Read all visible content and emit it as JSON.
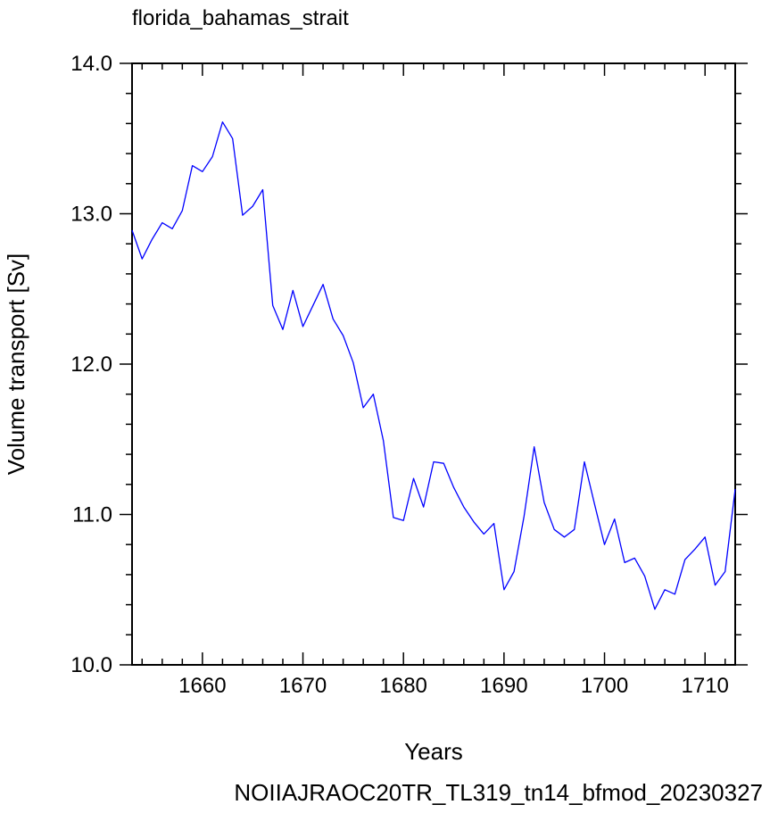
{
  "chart_data": {
    "type": "line",
    "title": "florida_bahamas_strait",
    "xlabel": "Years",
    "ylabel": "Volume transport [Sv]",
    "footer": "NOIIAJRAOC20TR_TL319_tn14_bfmod_20230327",
    "xlim": [
      1653,
      1713
    ],
    "ylim": [
      10.0,
      14.0
    ],
    "x_ticks": [
      1660,
      1670,
      1680,
      1690,
      1700,
      1710
    ],
    "x_tick_labels": [
      "1660",
      "1670",
      "1680",
      "1690",
      "1700",
      "1710"
    ],
    "y_ticks": [
      10.0,
      11.0,
      12.0,
      13.0,
      14.0
    ],
    "y_tick_labels": [
      "10.0",
      "11.0",
      "12.0",
      "13.0",
      "14.0"
    ],
    "grid": false,
    "line_color": "#0000ff",
    "footer_color": "#0000ff",
    "series": [
      {
        "x": [
          1653,
          1654,
          1655,
          1656,
          1657,
          1658,
          1659,
          1660,
          1661,
          1662,
          1663,
          1664,
          1665,
          1666,
          1667,
          1668,
          1669,
          1670,
          1671,
          1672,
          1673,
          1674,
          1675,
          1676,
          1677,
          1678,
          1679,
          1680,
          1681,
          1682,
          1683,
          1684,
          1685,
          1686,
          1687,
          1688,
          1689,
          1690,
          1691,
          1692,
          1693,
          1694,
          1695,
          1696,
          1697,
          1698,
          1699,
          1700,
          1701,
          1702,
          1703,
          1704,
          1705,
          1706,
          1707,
          1708,
          1709,
          1710,
          1711,
          1712,
          1713
        ],
        "values": [
          12.89,
          12.7,
          12.83,
          12.94,
          12.9,
          13.02,
          13.32,
          13.28,
          13.38,
          13.61,
          13.5,
          12.99,
          13.05,
          13.16,
          12.39,
          12.23,
          12.49,
          12.25,
          12.39,
          12.53,
          12.3,
          12.19,
          12.01,
          11.71,
          11.8,
          11.49,
          10.98,
          10.96,
          11.24,
          11.05,
          11.35,
          11.34,
          11.18,
          11.05,
          10.95,
          10.87,
          10.94,
          10.5,
          10.62,
          10.99,
          11.45,
          11.08,
          10.9,
          10.85,
          10.9,
          11.35,
          11.07,
          10.8,
          10.97,
          10.68,
          10.71,
          10.59,
          10.37,
          10.5,
          10.47,
          10.7,
          10.77,
          10.85,
          10.53,
          10.62,
          11.17
        ]
      }
    ]
  }
}
